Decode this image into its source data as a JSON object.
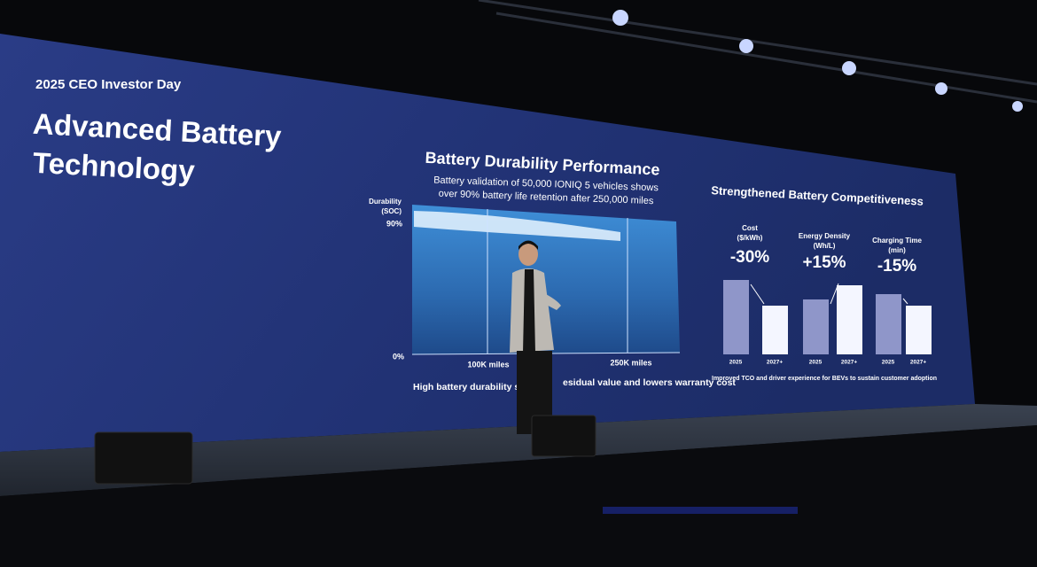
{
  "screen": {
    "event": "2025 CEO Investor Day",
    "title_lines": [
      "Advanced Battery",
      "Technology"
    ],
    "left_panel": {
      "heading": "Battery Durability Performance",
      "subtitle_lines": [
        "Battery validation of 50,000 IONIQ 5 vehicles shows",
        "over 90% battery life retention after 250,000 miles"
      ],
      "axis_title_lines": [
        "Durability",
        "(SOC)"
      ],
      "y_labels": [
        "90%",
        "0%"
      ],
      "x_labels": [
        "100K miles",
        "250K miles"
      ],
      "caption_parts": [
        "High battery durability su",
        "esidual value and lowers warranty cost"
      ]
    },
    "right_panel": {
      "heading": "Strengthened Battery Competitiveness",
      "metrics": [
        {
          "label_lines": [
            "Cost",
            "($/kWh)"
          ],
          "change": "-30%",
          "years": [
            "2025",
            "2027+"
          ]
        },
        {
          "label_lines": [
            "Energy Density",
            "(Wh/L)"
          ],
          "change": "+15%",
          "years": [
            "2025",
            "2027+"
          ]
        },
        {
          "label_lines": [
            "Charging Time",
            "(min)"
          ],
          "change": "-15%",
          "years": [
            "2025",
            "2027+"
          ]
        }
      ],
      "footnote": "Improved TCO and driver experience for BEVs to sustain customer adoption"
    }
  }
}
